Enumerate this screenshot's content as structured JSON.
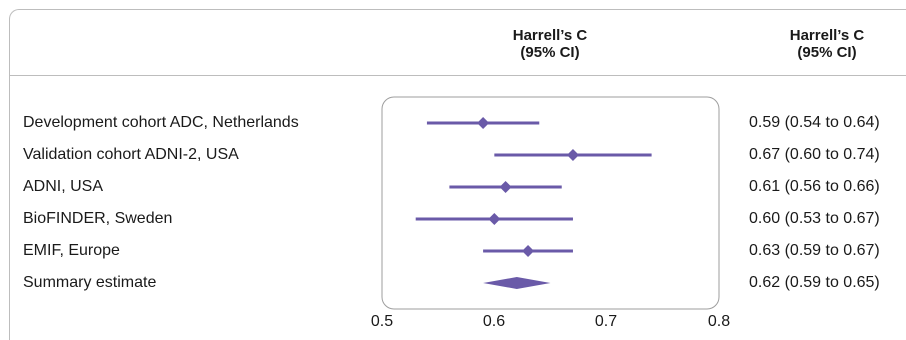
{
  "chart_data": {
    "type": "forest",
    "column_headers": [
      {
        "line1": "Harrell’s C",
        "line2": "(95% CI)"
      },
      {
        "line1": "Harrell’s C",
        "line2": "(95% CI)"
      }
    ],
    "rows": [
      {
        "label": "Development cohort ADC, Netherlands",
        "estimate": 0.59,
        "lower": 0.54,
        "upper": 0.64,
        "text": "0.59 (0.54 to 0.64)",
        "marker": "diamond-point"
      },
      {
        "label": "Validation cohort ADNI-2, USA",
        "estimate": 0.67,
        "lower": 0.6,
        "upper": 0.74,
        "text": "0.67 (0.60 to 0.74)",
        "marker": "diamond-point"
      },
      {
        "label": "ADNI, USA",
        "estimate": 0.61,
        "lower": 0.56,
        "upper": 0.66,
        "text": "0.61 (0.56 to 0.66)",
        "marker": "diamond-point"
      },
      {
        "label": "BioFINDER, Sweden",
        "estimate": 0.6,
        "lower": 0.53,
        "upper": 0.67,
        "text": "0.60 (0.53 to 0.67)",
        "marker": "diamond-point"
      },
      {
        "label": "EMIF, Europe",
        "estimate": 0.63,
        "lower": 0.59,
        "upper": 0.67,
        "text": "0.63 (0.59 to 0.67)",
        "marker": "diamond-point"
      },
      {
        "label": "Summary estimate",
        "estimate": 0.62,
        "lower": 0.59,
        "upper": 0.65,
        "text": "0.62 (0.59 to 0.65)",
        "marker": "summary-diamond"
      }
    ],
    "x_ticks": [
      0.5,
      0.6,
      0.7,
      0.8
    ],
    "x_tick_labels": [
      "0.5",
      "0.6",
      "0.7",
      "0.8"
    ],
    "xlim": [
      0.5,
      0.8
    ],
    "colors": {
      "marker": "#6a5aa8",
      "plot_border": "#9e9e9e",
      "rule": "#bdbdbd"
    }
  }
}
